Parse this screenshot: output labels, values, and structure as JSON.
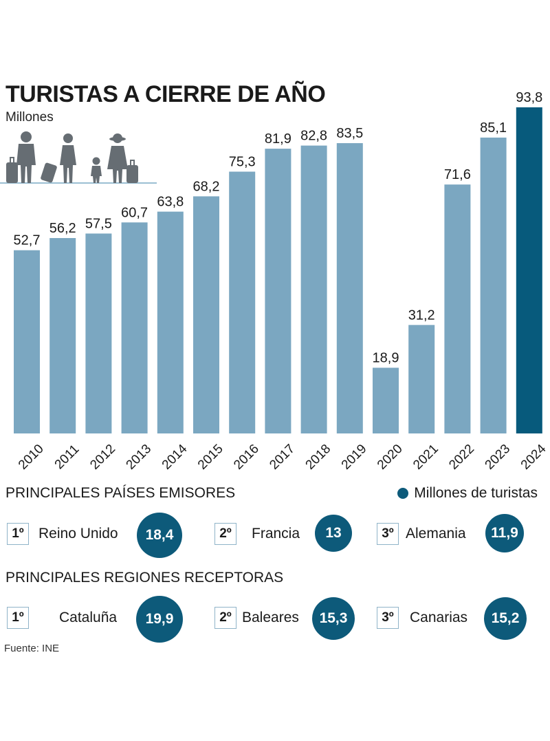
{
  "title": "TURISTAS A CIERRE DE AÑO",
  "subtitle": "Millones",
  "colors": {
    "bar": "#7ba7c1",
    "highlight": "#075a7c",
    "circle": "#0d5a7a",
    "icon": "#666d73",
    "ground": "#9bbfd3"
  },
  "chart_data": {
    "type": "bar",
    "categories": [
      "2010",
      "2011",
      "2012",
      "2013",
      "2014",
      "2015",
      "2016",
      "2017",
      "2018",
      "2019",
      "2020",
      "2021",
      "2022",
      "2023",
      "2024"
    ],
    "values": [
      52.7,
      56.2,
      57.5,
      60.7,
      63.8,
      68.2,
      75.3,
      81.9,
      82.8,
      83.5,
      18.9,
      31.2,
      71.6,
      85.1,
      93.8
    ],
    "value_labels": [
      "52,7",
      "56,2",
      "57,5",
      "60,7",
      "63,8",
      "68,2",
      "75,3",
      "81,9",
      "82,8",
      "83,5",
      "18,9",
      "31,2",
      "71,6",
      "85,1",
      "93,8"
    ],
    "highlight_category": "2024",
    "ylim": [
      0,
      93.8
    ]
  },
  "legend": {
    "label": "Millones de turistas"
  },
  "emisores": {
    "title": "PRINCIPALES PAÍSES EMISORES",
    "items": [
      {
        "rank": "1º",
        "name": "Reino Unido",
        "value": "18,4",
        "amount": 18.4
      },
      {
        "rank": "2º",
        "name": "Francia",
        "value": "13",
        "amount": 13
      },
      {
        "rank": "3º",
        "name": "Alemania",
        "value": "11,9",
        "amount": 11.9
      }
    ]
  },
  "receptoras": {
    "title": "PRINCIPALES REGIONES RECEPTORAS",
    "items": [
      {
        "rank": "1º",
        "name": "Cataluña",
        "value": "19,9",
        "amount": 19.9
      },
      {
        "rank": "2º",
        "name": "Baleares",
        "value": "15,3",
        "amount": 15.3
      },
      {
        "rank": "3º",
        "name": "Canarias",
        "value": "15,2",
        "amount": 15.2
      }
    ]
  },
  "source": "Fuente: INE"
}
